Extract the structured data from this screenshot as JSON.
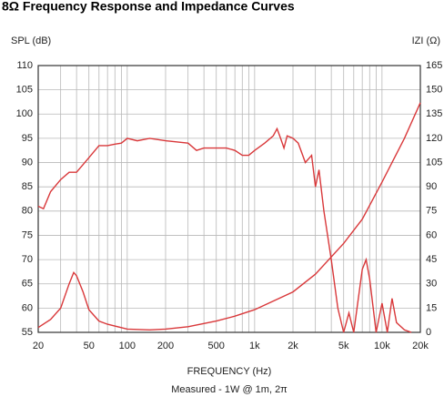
{
  "chart_data": {
    "type": "line",
    "title": "8Ω Frequency Response and Impedance Curves",
    "ylabel": "SPL (dB)",
    "y2label": "IZI (Ω)",
    "xlabel": "FREQUENCY (Hz)",
    "subtitle": "Measured - 1W @ 1m, 2π",
    "xscale": "log",
    "grid": true,
    "xlim": [
      20,
      20000
    ],
    "xticks": [
      20,
      50,
      100,
      200,
      500,
      {
        "value": 1000,
        "label": "1k"
      },
      {
        "value": 2000,
        "label": "2k"
      },
      {
        "value": 5000,
        "label": "5k"
      },
      {
        "value": 10000,
        "label": "10k"
      },
      {
        "value": 20000,
        "label": "20k"
      }
    ],
    "x_minor_grid": [
      30,
      40,
      60,
      70,
      80,
      90,
      300,
      400,
      600,
      700,
      800,
      900,
      3000,
      4000,
      6000,
      7000,
      8000,
      9000
    ],
    "ylim": [
      55,
      110
    ],
    "yticks": [
      55,
      60,
      65,
      70,
      75,
      80,
      85,
      90,
      95,
      100,
      105,
      110
    ],
    "y2lim": [
      0,
      165
    ],
    "y2ticks": [
      0,
      15,
      30,
      45,
      60,
      75,
      90,
      105,
      120,
      135,
      150,
      165
    ],
    "series": [
      {
        "color": "#d9383a",
        "x": [
          20,
          22,
          25,
          30,
          35,
          40,
          50,
          60,
          70,
          80,
          90,
          100,
          120,
          150,
          200,
          300,
          350,
          400,
          500,
          600,
          700,
          800,
          900,
          1000,
          1200,
          1400,
          1500,
          1600,
          1700,
          1800,
          2000,
          2200,
          2500,
          2800,
          3000,
          3200,
          3500,
          4000,
          4500,
          5000,
          5500,
          6000,
          7000,
          7500,
          8000,
          9000,
          10000,
          11000,
          12000,
          13000,
          15000,
          17000
        ],
        "values": [
          81,
          80.5,
          84,
          86.5,
          88,
          88,
          91,
          93.5,
          93.5,
          93.8,
          94,
          95,
          94.5,
          95,
          94.5,
          94,
          92.5,
          93,
          93,
          93,
          92.5,
          91.5,
          91.5,
          92.5,
          94,
          95.5,
          97,
          95,
          93,
          95.5,
          95,
          94,
          90,
          91.5,
          85,
          88.5,
          80,
          70,
          60,
          55,
          59,
          55,
          68,
          70,
          66,
          55,
          61,
          55,
          62,
          57,
          55.5,
          55
        ]
      },
      {
        "color": "#d9383a",
        "axis": "y2",
        "x": [
          20,
          25,
          30,
          35,
          38,
          40,
          45,
          50,
          60,
          70,
          100,
          150,
          200,
          300,
          500,
          700,
          1000,
          2000,
          3000,
          5000,
          7000,
          10000,
          15000,
          20000
        ],
        "values": [
          3,
          8,
          15,
          30,
          37,
          35,
          25,
          14,
          7,
          5,
          2,
          1.5,
          2,
          3.5,
          7,
          10,
          14,
          25,
          36,
          55,
          70,
          93,
          120,
          142
        ]
      }
    ]
  }
}
